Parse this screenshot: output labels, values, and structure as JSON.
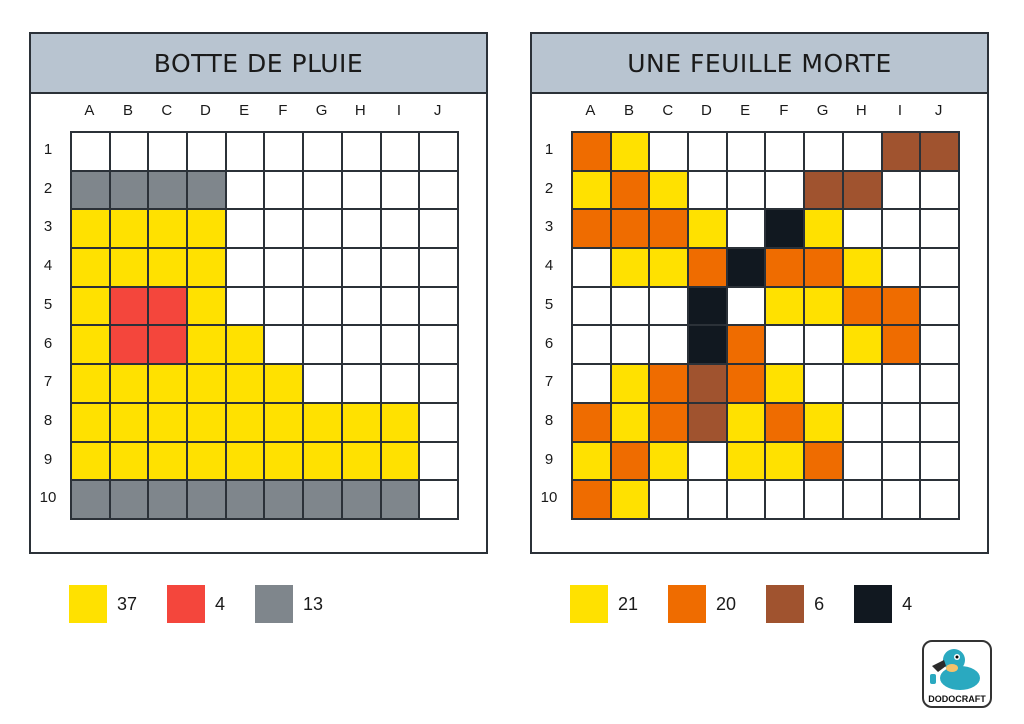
{
  "columns": [
    "A",
    "B",
    "C",
    "D",
    "E",
    "F",
    "G",
    "H",
    "I",
    "J"
  ],
  "rows": [
    "1",
    "2",
    "3",
    "4",
    "5",
    "6",
    "7",
    "8",
    "9",
    "10"
  ],
  "colors": {
    "Y": "#ffe100",
    "R": "#f4463c",
    "G": "#7f868c",
    "O": "#ef6c00",
    "B": "#a0532f",
    "K": "#111820",
    "W": "#ffffff"
  },
  "puzzles": [
    {
      "title": "BOTTE DE PLUIE",
      "grid": [
        "WWWWWWWWWW",
        "GGGGWWWWWW",
        "YYYYWWWWWW",
        "YYYYWWWWWW",
        "YRRYWWWWWW",
        "YRRYYWWWWW",
        "YYYYYYWWWW",
        "YYYYYYYYYW",
        "YYYYYYYYYW",
        "GGGGGGGGGW"
      ],
      "legend": [
        {
          "color": "Y",
          "count": "37"
        },
        {
          "color": "R",
          "count": "4"
        },
        {
          "color": "G",
          "count": "13"
        }
      ]
    },
    {
      "title": "UNE FEUILLE MORTE",
      "grid": [
        "OYWWWWWWBB",
        "YOYWWWBBWW",
        "OOOYWKYWWW",
        "WYYOKOOYWW",
        "WWWKWYYOOW",
        "WWWKOWWYOW",
        "WYOBOYWWWW",
        "OYOBYOYWWW",
        "YOYWYYOWWW",
        "OYWWWWWWWW"
      ],
      "legend": [
        {
          "color": "Y",
          "count": "21"
        },
        {
          "color": "O",
          "count": "20"
        },
        {
          "color": "B",
          "count": "6"
        },
        {
          "color": "K",
          "count": "4"
        }
      ]
    }
  ],
  "logo": {
    "text": "DODOCRAFT",
    "icon": "dodo-bird-icon"
  }
}
